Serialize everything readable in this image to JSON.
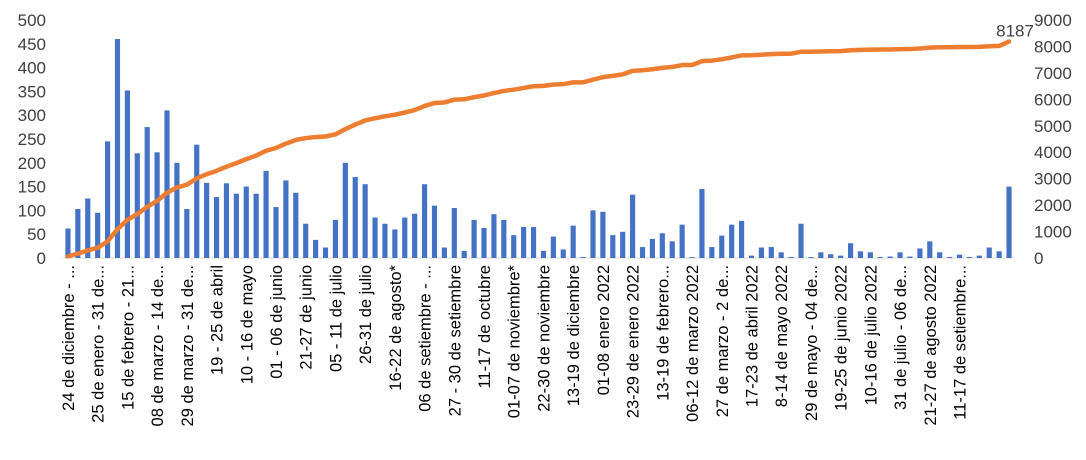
{
  "chart_data": {
    "type": "bar",
    "title": "",
    "xlabel": "",
    "ylabel": "",
    "grid": false,
    "legend": "none",
    "ylim_left": [
      0,
      500
    ],
    "ylim_right": [
      0,
      9000
    ],
    "y_ticks_left": [
      "0",
      "50",
      "100",
      "150",
      "200",
      "250",
      "300",
      "350",
      "400",
      "450",
      "500"
    ],
    "y_ticks_right": [
      "0",
      "1000",
      "2000",
      "3000",
      "4000",
      "5000",
      "6000",
      "7000",
      "8000",
      "9000"
    ],
    "categories_shown": [
      "24 de diciembre - ...",
      "25 de enero - 31 de...",
      "15 de febrero - 21...",
      "08 de marzo - 14 de...",
      "29 de marzo - 31 de...",
      "19 - 25 de abril",
      "10 - 16 de mayo",
      "01 - 06 de junio",
      "21-27 de junio",
      "05 - 11 de julio",
      "26-31 de julio",
      "16-22 de agosto*",
      "06 de setiembre - ...",
      "27 - 30 de setiembre",
      "11-17 de octubre",
      "01-07 de noviembre*",
      "22-30 de noviembre",
      "13-19 de diciembre",
      "01-08 enero 2022",
      "23-29 de enero 2022",
      "13-19 de febrero...",
      "06-12 de marzo 2022",
      "27 de marzo - 2 de...",
      "17-23 de abril 2022",
      "8-14 de mayo 2022",
      "29 de mayo - 04 de...",
      "19-25 de junio 2022",
      "10-16 de julio 2022",
      "31 de julio - 06 de...",
      "21-27 de agosto 2022",
      "11-17 de setiembre..."
    ],
    "series": [
      {
        "type": "bar",
        "axis": "left",
        "color": "#4472C4",
        "values": [
          62,
          103,
          125,
          95,
          245,
          460,
          352,
          220,
          275,
          222,
          310,
          200,
          103,
          238,
          158,
          128,
          157,
          135,
          150,
          135,
          183,
          107,
          163,
          137,
          72,
          38,
          22,
          80,
          200,
          170,
          155,
          85,
          72,
          60,
          85,
          93,
          155,
          110,
          22,
          105,
          15,
          80,
          63,
          92,
          80,
          48,
          65,
          65,
          15,
          45,
          18,
          68,
          2,
          100,
          97,
          48,
          55,
          133,
          23,
          40,
          52,
          35,
          70,
          2,
          145,
          23,
          47,
          70,
          78,
          5,
          22,
          23,
          12,
          2,
          72,
          2,
          12,
          8,
          5,
          31,
          14,
          12,
          2,
          3,
          12,
          3,
          20,
          35,
          12,
          2,
          7,
          2,
          5,
          22,
          14,
          150
        ]
      },
      {
        "type": "line",
        "axis": "right",
        "color": "#ED7D31",
        "values": [
          62,
          165,
          290,
          385,
          630,
          1090,
          1442,
          1662,
          1937,
          2159,
          2469,
          2669,
          2772,
          3010,
          3168,
          3296,
          3453,
          3588,
          3738,
          3873,
          4056,
          4163,
          4326,
          4463,
          4535,
          4573,
          4595,
          4675,
          4875,
          5045,
          5200,
          5285,
          5357,
          5417,
          5502,
          5595,
          5750,
          5860,
          5882,
          5987,
          6002,
          6082,
          6145,
          6237,
          6317,
          6365,
          6430,
          6495,
          6510,
          6555,
          6573,
          6641,
          6643,
          6743,
          6840,
          6888,
          6943,
          7076,
          7099,
          7139,
          7191,
          7226,
          7296,
          7298,
          7443,
          7466,
          7513,
          7583,
          7661,
          7666,
          7688,
          7711,
          7723,
          7725,
          7797,
          7799,
          7811,
          7819,
          7824,
          7855,
          7869,
          7881,
          7883,
          7886,
          7898,
          7901,
          7921,
          7956,
          7968,
          7970,
          7977,
          7979,
          7984,
          8006,
          8020,
          8187
        ]
      }
    ],
    "data_labels": [
      {
        "series": 1,
        "point": "last",
        "text": "8187"
      }
    ]
  }
}
